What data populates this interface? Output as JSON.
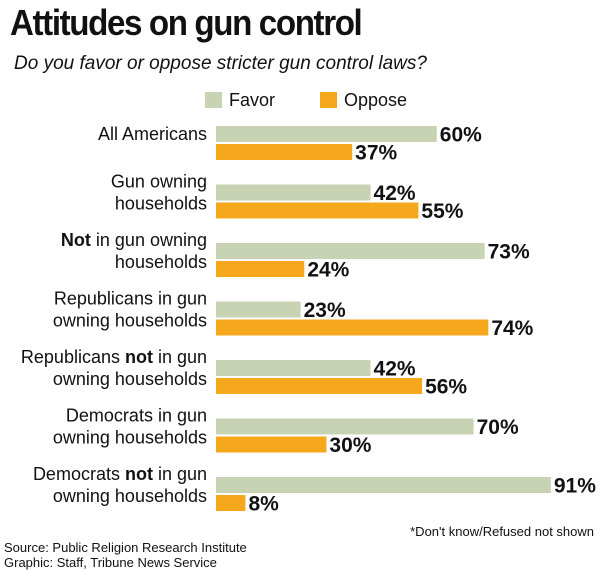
{
  "chart_data": {
    "type": "bar",
    "orientation": "horizontal",
    "title": "Attitudes on gun control",
    "subtitle": "Do you favor or oppose stricter gun control laws?",
    "xlim": [
      0,
      100
    ],
    "value_suffix": "%",
    "categories": [
      [
        {
          "t": "All Americans"
        }
      ],
      [
        {
          "t": "Gun owning"
        },
        {
          "t": "households"
        }
      ],
      [
        {
          "t": "Not",
          "b": true
        },
        {
          "t": " in gun owning"
        },
        {
          "t": "households",
          "nl": true
        }
      ],
      [
        {
          "t": "Republicans in gun"
        },
        {
          "t": "owning households",
          "nl": true
        }
      ],
      [
        {
          "t": "Republicans "
        },
        {
          "t": "not",
          "b": true
        },
        {
          "t": " in gun"
        },
        {
          "t": "owning households",
          "nl": true
        }
      ],
      [
        {
          "t": "Democrats in gun"
        },
        {
          "t": "owning households",
          "nl": true
        }
      ],
      [
        {
          "t": "Democrats "
        },
        {
          "t": "not",
          "b": true
        },
        {
          "t": " in gun"
        },
        {
          "t": "owning households",
          "nl": true
        }
      ]
    ],
    "series": [
      {
        "name": "Favor",
        "color": "#c8d3b4",
        "values": [
          60,
          42,
          73,
          23,
          42,
          70,
          91
        ]
      },
      {
        "name": "Oppose",
        "color": "#f5a81c",
        "values": [
          37,
          55,
          24,
          74,
          56,
          30,
          8
        ]
      }
    ]
  },
  "footnote": "*Don't know/Refused not shown",
  "source": "Source: Public Religion Research Institute",
  "credit": "Graphic: Staff, Tribune News Service"
}
